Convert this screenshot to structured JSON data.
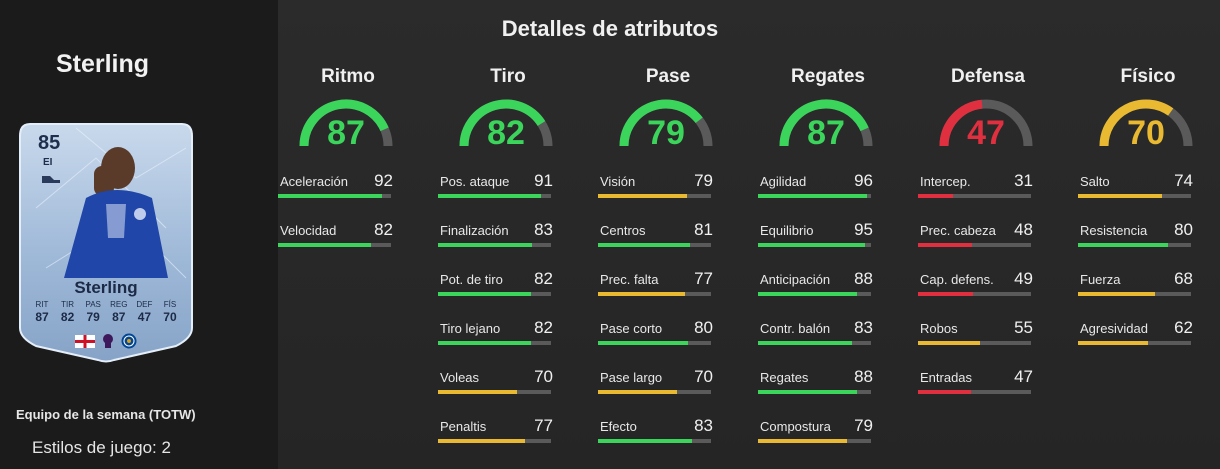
{
  "player": {
    "name": "Sterling",
    "card": {
      "rating": "85",
      "position": "EI",
      "name": "Sterling",
      "stats": [
        {
          "label": "RIT",
          "value": "87"
        },
        {
          "label": "TIR",
          "value": "82"
        },
        {
          "label": "PAS",
          "value": "79"
        },
        {
          "label": "REG",
          "value": "87"
        },
        {
          "label": "DEF",
          "value": "47"
        },
        {
          "label": "FÍS",
          "value": "70"
        }
      ]
    },
    "team_label": "Equipo de la semana (TOTW)",
    "playstyles_label": "Estilos de juego: 2"
  },
  "title": "Detalles de atributos",
  "colors": {
    "green": "#3cd55c",
    "yellow": "#e8b931",
    "red": "#e0303f",
    "track": "#5a5a5a"
  },
  "categories": [
    {
      "name": "Ritmo",
      "value": 87,
      "color": "#3cd55c",
      "attributes": [
        {
          "name": "Aceleración",
          "value": 92
        },
        {
          "name": "Velocidad",
          "value": 82
        }
      ]
    },
    {
      "name": "Tiro",
      "value": 82,
      "color": "#3cd55c",
      "attributes": [
        {
          "name": "Pos. ataque",
          "value": 91
        },
        {
          "name": "Finalización",
          "value": 83
        },
        {
          "name": "Pot. de tiro",
          "value": 82
        },
        {
          "name": "Tiro lejano",
          "value": 82
        },
        {
          "name": "Voleas",
          "value": 70
        },
        {
          "name": "Penaltis",
          "value": 77
        }
      ]
    },
    {
      "name": "Pase",
      "value": 79,
      "color": "#3cd55c",
      "attributes": [
        {
          "name": "Visión",
          "value": 79
        },
        {
          "name": "Centros",
          "value": 81
        },
        {
          "name": "Prec. falta",
          "value": 77
        },
        {
          "name": "Pase corto",
          "value": 80
        },
        {
          "name": "Pase largo",
          "value": 70
        },
        {
          "name": "Efecto",
          "value": 83
        }
      ]
    },
    {
      "name": "Regates",
      "value": 87,
      "color": "#3cd55c",
      "attributes": [
        {
          "name": "Agilidad",
          "value": 96
        },
        {
          "name": "Equilibrio",
          "value": 95
        },
        {
          "name": "Anticipación",
          "value": 88
        },
        {
          "name": "Contr. balón",
          "value": 83
        },
        {
          "name": "Regates",
          "value": 88
        },
        {
          "name": "Compostura",
          "value": 79
        }
      ]
    },
    {
      "name": "Defensa",
      "value": 47,
      "color": "#e0303f",
      "attributes": [
        {
          "name": "Intercep.",
          "value": 31
        },
        {
          "name": "Prec. cabeza",
          "value": 48
        },
        {
          "name": "Cap. defens.",
          "value": 49
        },
        {
          "name": "Robos",
          "value": 55
        },
        {
          "name": "Entradas",
          "value": 47
        }
      ]
    },
    {
      "name": "Físico",
      "value": 70,
      "color": "#e8b931",
      "attributes": [
        {
          "name": "Salto",
          "value": 74
        },
        {
          "name": "Resistencia",
          "value": 80
        },
        {
          "name": "Fuerza",
          "value": 68
        },
        {
          "name": "Agresividad",
          "value": 62
        }
      ]
    }
  ]
}
